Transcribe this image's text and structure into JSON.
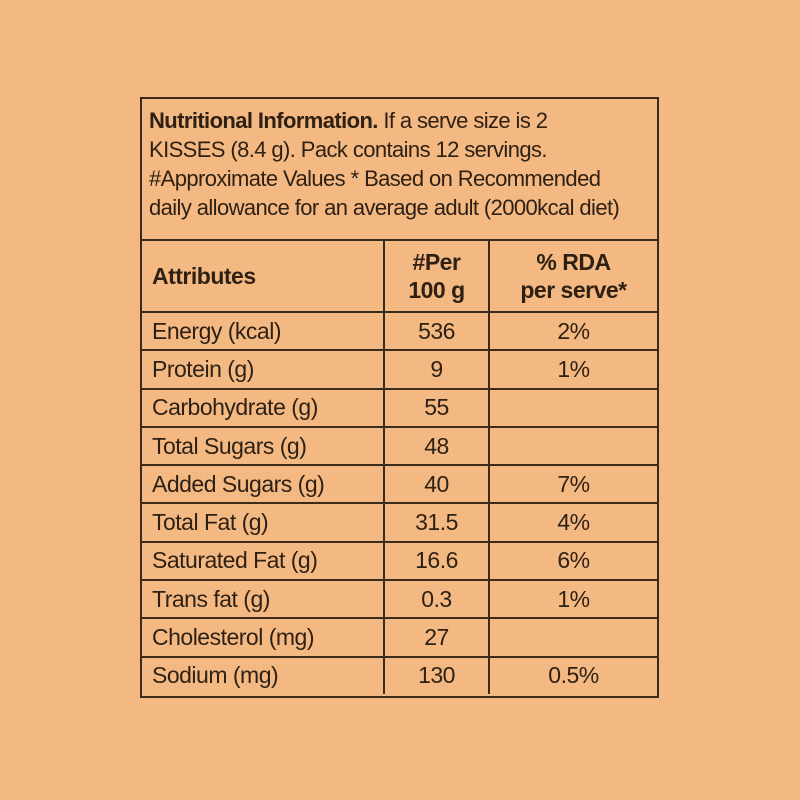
{
  "page": {
    "background_color": "#f4b983",
    "ink_color": "#3a2b1b"
  },
  "intro": {
    "title": "Nutritional Information.",
    "line1_rest": " If a serve size is 2",
    "line2": "KISSES (8.4 g). Pack contains 12 servings.",
    "line3": "#Approximate Values * Based on Recommended",
    "line4": "daily allowance for an average adult (2000kcal diet)"
  },
  "table": {
    "headers": {
      "attributes": "Attributes",
      "per_line1": "#Per",
      "per_line2": "100 g",
      "rda_line1": "% RDA",
      "rda_line2": "per serve*"
    },
    "rows": [
      {
        "attribute": "Energy (kcal)",
        "per_100g": "536",
        "rda_per_serve": "2%"
      },
      {
        "attribute": "Protein (g)",
        "per_100g": "9",
        "rda_per_serve": "1%"
      },
      {
        "attribute": "Carbohydrate (g)",
        "per_100g": "55",
        "rda_per_serve": ""
      },
      {
        "attribute": "Total Sugars (g)",
        "per_100g": "48",
        "rda_per_serve": ""
      },
      {
        "attribute": "Added Sugars (g)",
        "per_100g": "40",
        "rda_per_serve": "7%"
      },
      {
        "attribute": "Total Fat (g)",
        "per_100g": "31.5",
        "rda_per_serve": "4%"
      },
      {
        "attribute": "Saturated Fat (g)",
        "per_100g": "16.6",
        "rda_per_serve": "6%"
      },
      {
        "attribute": "Trans fat (g)",
        "per_100g": "0.3",
        "rda_per_serve": "1%"
      },
      {
        "attribute": "Cholesterol (mg)",
        "per_100g": "27",
        "rda_per_serve": ""
      },
      {
        "attribute": "Sodium (mg)",
        "per_100g": "130",
        "rda_per_serve": "0.5%"
      }
    ]
  }
}
